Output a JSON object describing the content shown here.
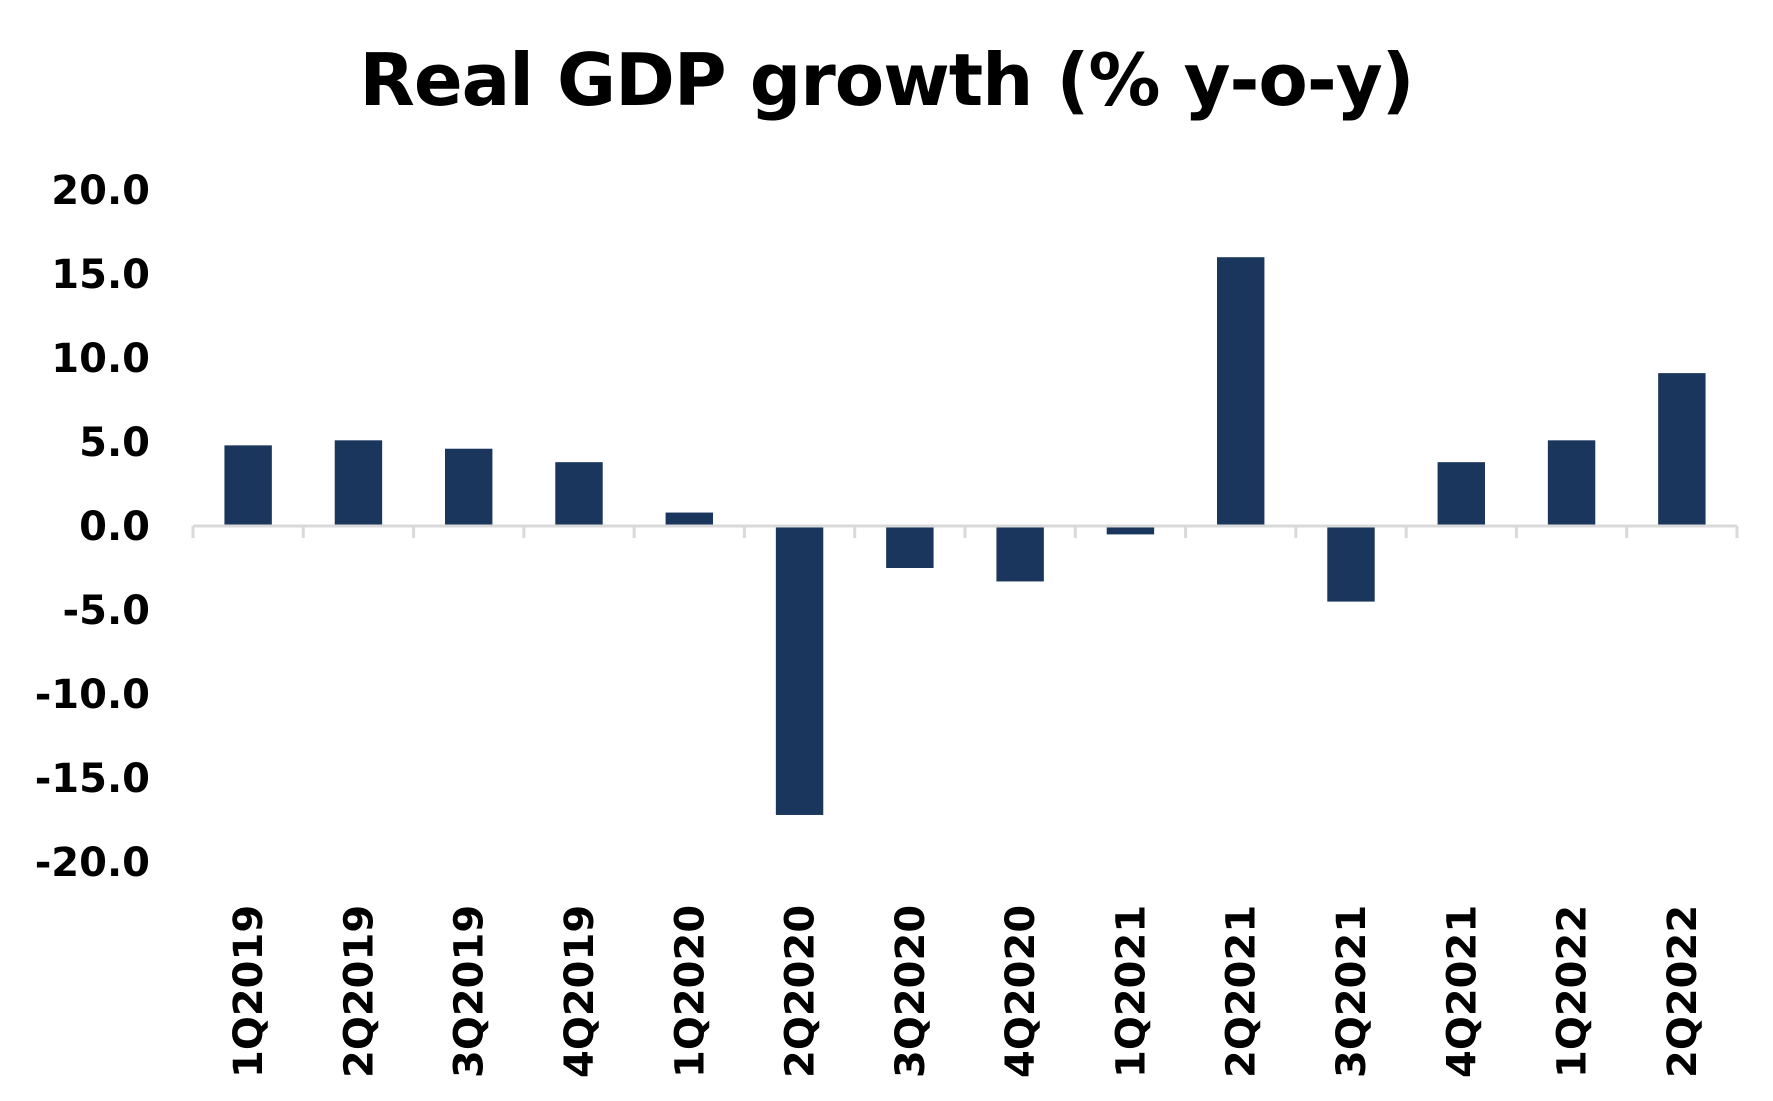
{
  "chart_data": {
    "type": "bar",
    "title": "Real GDP growth (% y-o-y)",
    "xlabel": "",
    "ylabel": "",
    "categories": [
      "1Q2019",
      "2Q2019",
      "3Q2019",
      "4Q2019",
      "1Q2020",
      "2Q2020",
      "3Q2020",
      "4Q2020",
      "1Q2021",
      "2Q2021",
      "3Q2021",
      "4Q2021",
      "1Q2022",
      "2Q2022"
    ],
    "values": [
      4.8,
      5.1,
      4.6,
      3.8,
      0.8,
      -17.2,
      -2.5,
      -3.3,
      -0.5,
      16.0,
      -4.5,
      3.8,
      5.1,
      9.1
    ],
    "ylim": [
      -20,
      20
    ],
    "yticks": [
      20,
      15,
      10,
      5,
      0,
      -5,
      -10,
      -15,
      -20
    ],
    "ytick_labels": [
      "20.0",
      "15.0",
      "10.0",
      "5.0",
      "0.0",
      "-5.0",
      "-10.0",
      "-15.0",
      "-20.0"
    ],
    "grid": false,
    "legend": "none",
    "colors": {
      "bar": "#1b365d",
      "axis": "#d9d9d9",
      "text": "#000000"
    }
  }
}
